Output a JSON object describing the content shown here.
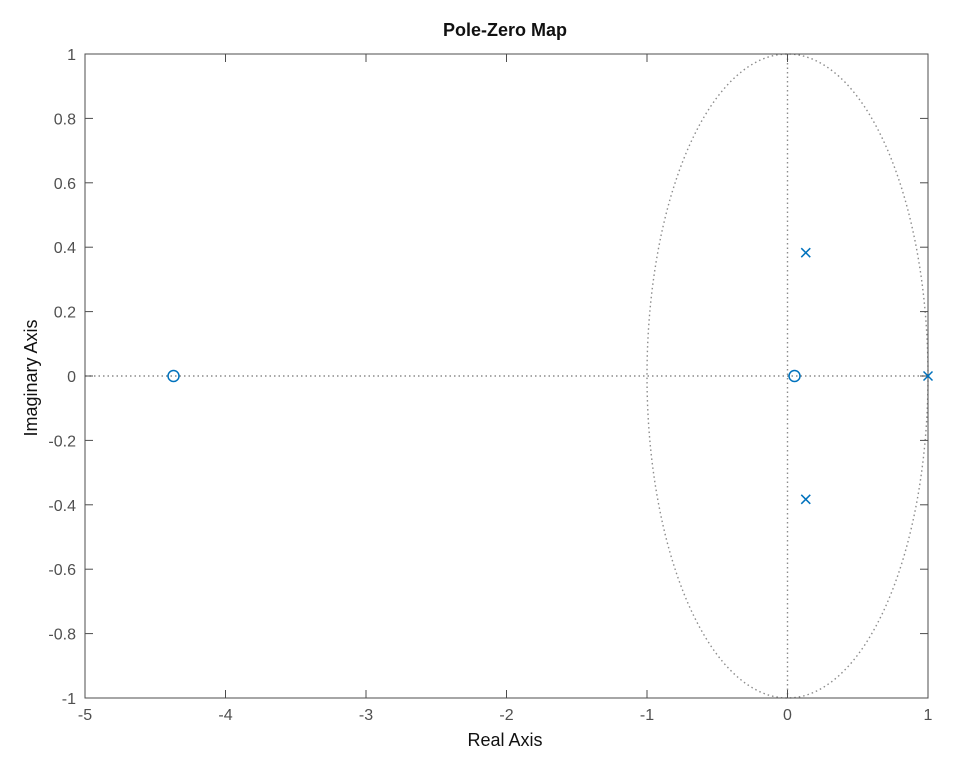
{
  "chart_data": {
    "type": "scatter",
    "title": "Pole-Zero Map",
    "xlabel": "Real Axis",
    "ylabel": "Imaginary Axis",
    "xlim": [
      -5,
      1
    ],
    "ylim": [
      -1,
      1
    ],
    "x_ticks": [
      -5,
      -4,
      -3,
      -2,
      -1,
      0,
      1
    ],
    "y_ticks": [
      1,
      0.8,
      0.6,
      0.4,
      0.2,
      0,
      -0.2,
      -0.4,
      -0.6,
      -0.8,
      -1
    ],
    "x_tick_labels": [
      "-5",
      "-4",
      "-3",
      "-2",
      "-1",
      "0",
      "1"
    ],
    "y_tick_labels": [
      "1",
      "0.8",
      "0.6",
      "0.4",
      "0.2",
      "0",
      "-0.2",
      "-0.4",
      "-0.6",
      "-0.8",
      "-1"
    ],
    "grid": false,
    "unit_circle": true,
    "series": [
      {
        "marker": "x",
        "color": "#0072bd",
        "points": [
          {
            "x": 0.13,
            "y": 0.383
          },
          {
            "x": 0.13,
            "y": -0.383
          },
          {
            "x": 1.0,
            "y": 0.0
          }
        ]
      },
      {
        "marker": "o",
        "color": "#0072bd",
        "points": [
          {
            "x": -4.37,
            "y": 0.0
          },
          {
            "x": 0.05,
            "y": 0.0
          }
        ]
      }
    ],
    "colors": {
      "axis": "#4d4d4d",
      "reference": "#8c8c8c",
      "marker": "#0072bd"
    }
  }
}
